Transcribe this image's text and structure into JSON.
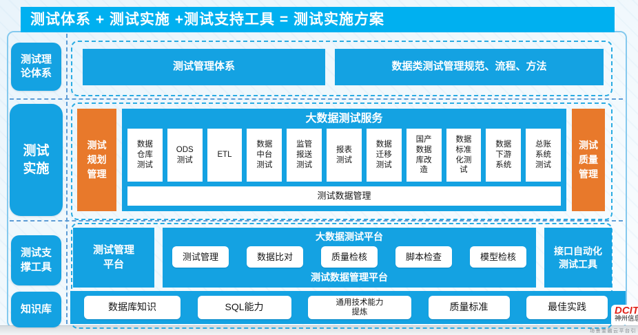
{
  "header": {
    "title": "测试体系 + 测试实施 +测试支持工具 = 测试实施方案"
  },
  "sidebar": {
    "items": [
      {
        "label": "测试理\n论体系"
      },
      {
        "label": "测试\n实施"
      },
      {
        "label": "测试支\n撑工具"
      },
      {
        "label": "知识库"
      }
    ]
  },
  "theory_section": {
    "boxes": [
      {
        "label": "测试管理体系"
      },
      {
        "label": "数据类测试管理规范、流程、方法"
      }
    ]
  },
  "implementation_section": {
    "left_box": "测试\n规划\n管理",
    "service_title": "大数据测试服务",
    "services": [
      "数据\n仓库\n测试",
      "ODS\n测试",
      "ETL",
      "数据\n中台\n测试",
      "监管\n报送\n测试",
      "报表\n测试",
      "数据\n迁移\n测试",
      "国产\n数据\n库改\n造",
      "数据\n标准\n化测\n试",
      "数据\n下游\n系统",
      "总账\n系统\n测试"
    ],
    "bottom_bar": "测试数据管理",
    "right_box": "测试\n质量\n管理"
  },
  "tools_section": {
    "left_box": "测试管理\n平台",
    "platform_title": "大数据测试平台",
    "tools": [
      "测试管理",
      "数据比对",
      "质量检核",
      "脚本检查",
      "模型检核"
    ],
    "platform_bottom": "测试数据管理平台",
    "right_box": "接口自动化\n测试工具"
  },
  "knowledge_section": {
    "items": [
      "数据库知识",
      "SQL能力",
      "通用技术能力\n提炼",
      "质量标准",
      "最佳实践"
    ]
  },
  "logo": {
    "brand": "DCITS",
    "brand_cn": "神州信息",
    "tagline": "场景金融云平台引"
  },
  "colors": {
    "header_blue": "#00b0f0",
    "box_blue": "#14a2e2",
    "orange": "#e8792b",
    "dashed_border": "#29abe2",
    "separator_dash": "#5b9bd5",
    "logo_red": "#e1251b"
  }
}
